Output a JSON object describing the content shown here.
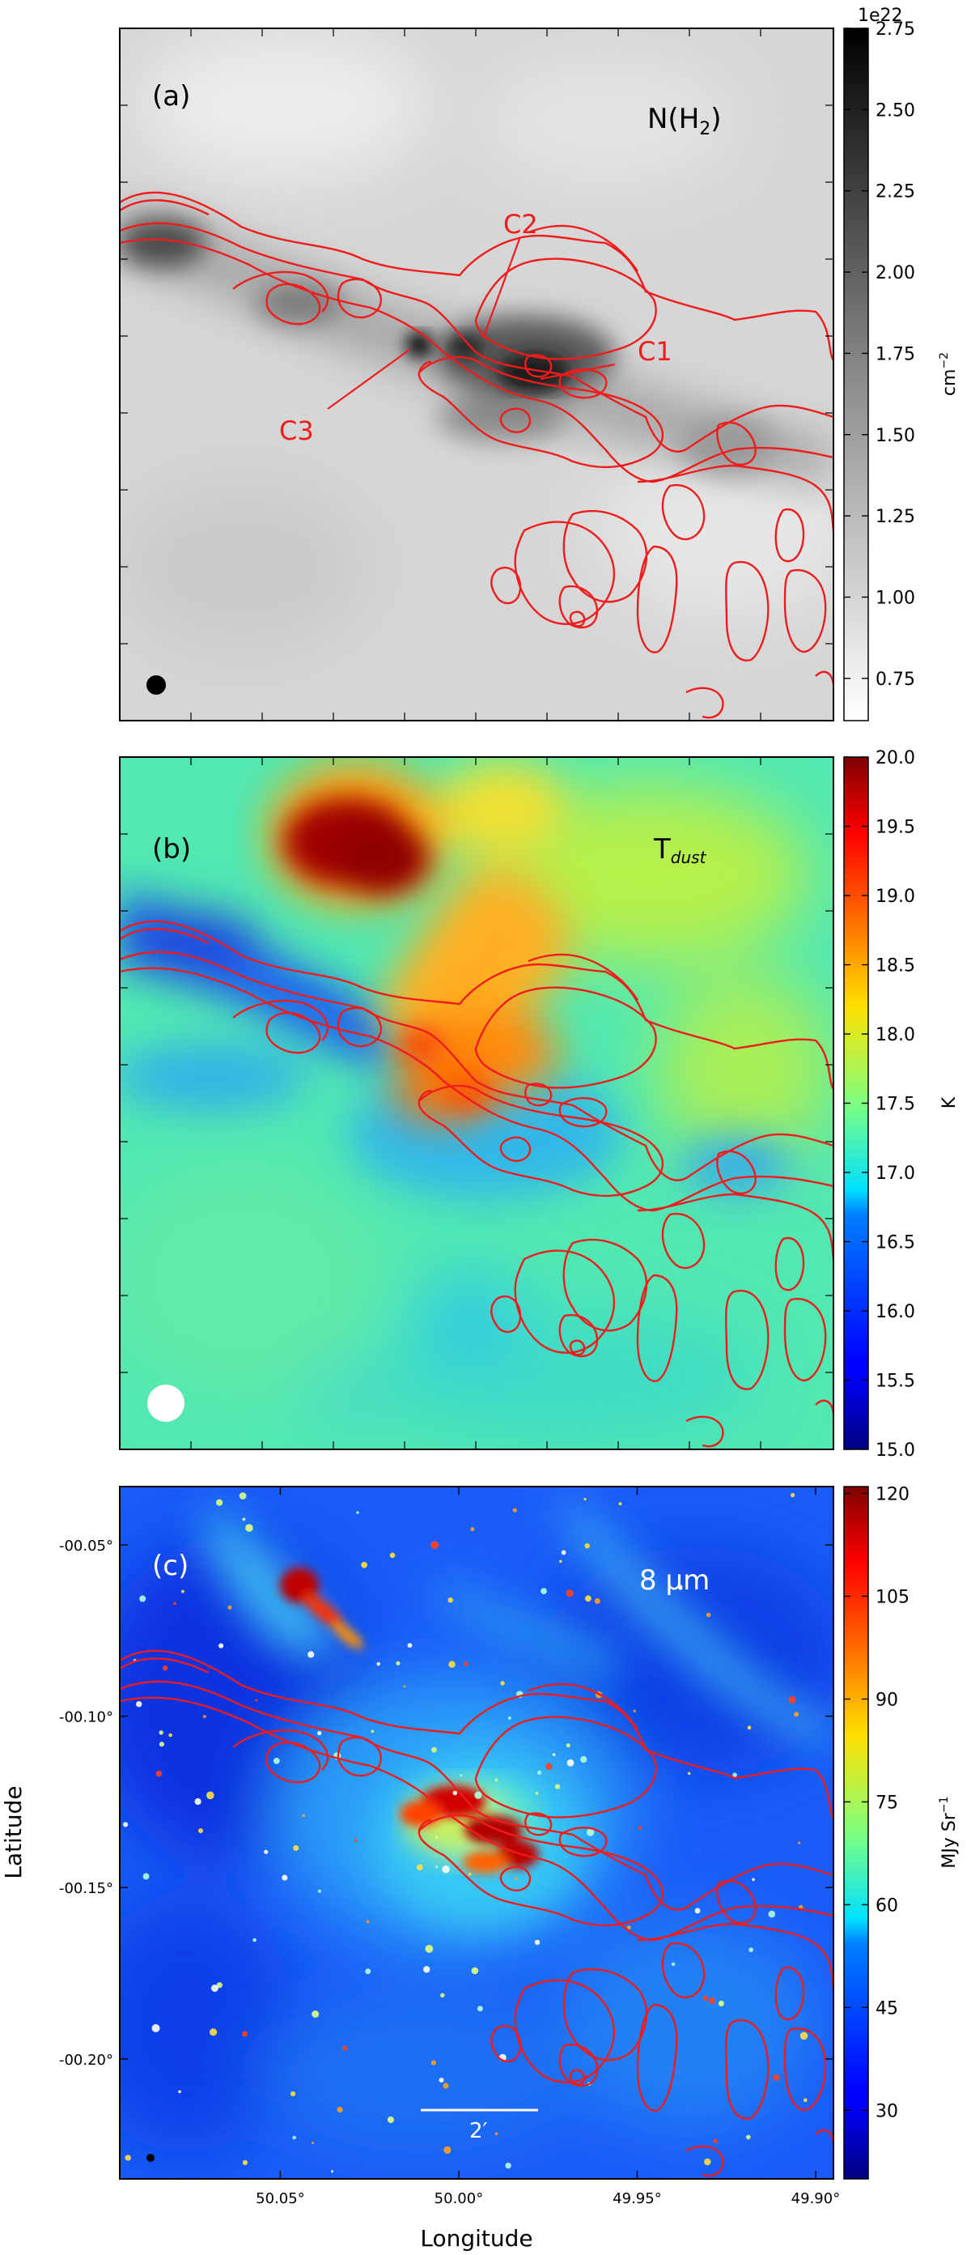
{
  "colors": {
    "contour": "#ee1c1c",
    "frame": "#000000",
    "text": "#000000",
    "inner_text_light": "#ffffff"
  },
  "chart_data": [
    {
      "type": "heatmap",
      "panel_label": "(a)",
      "quantity_label": "N(H",
      "quantity_subscript": "2",
      "quantity_close": ")",
      "colormap": "grayscale",
      "colorbar_exponent": "1e22",
      "colorbar_unit": "cm",
      "colorbar_unit_power": "−2",
      "colorbar_range": [
        0.62,
        2.75
      ],
      "colorbar_ticks": [
        "0.75",
        "1.00",
        "1.25",
        "1.50",
        "1.75",
        "2.00",
        "2.25",
        "2.50",
        "2.75"
      ],
      "colorbar_tick_values": [
        0.75,
        1.0,
        1.25,
        1.5,
        1.75,
        2.0,
        2.25,
        2.5,
        2.75
      ],
      "annotations": [
        {
          "label": "C1"
        },
        {
          "label": "C2"
        },
        {
          "label": "C3"
        }
      ],
      "beam": "filled-circle"
    },
    {
      "type": "heatmap",
      "panel_label": "(b)",
      "quantity_label": "T",
      "quantity_subscript": "dust",
      "colormap": "jet",
      "colorbar_unit": "K",
      "colorbar_range": [
        15.0,
        20.0
      ],
      "colorbar_ticks": [
        "15.0",
        "15.5",
        "16.0",
        "16.5",
        "17.0",
        "17.5",
        "18.0",
        "18.5",
        "19.0",
        "19.5",
        "20.0"
      ],
      "colorbar_tick_values": [
        15.0,
        15.5,
        16.0,
        16.5,
        17.0,
        17.5,
        18.0,
        18.5,
        19.0,
        19.5,
        20.0
      ],
      "beam": "white-circle"
    },
    {
      "type": "heatmap",
      "panel_label": "(c)",
      "quantity_label": "8 μm",
      "colormap": "jet",
      "colorbar_unit": "MJy Sr",
      "colorbar_unit_power": "−1",
      "colorbar_range": [
        20,
        121
      ],
      "colorbar_ticks": [
        "30",
        "45",
        "60",
        "75",
        "90",
        "105",
        "120"
      ],
      "colorbar_tick_values": [
        30,
        45,
        60,
        75,
        90,
        105,
        120
      ],
      "xlabel": "Longitude",
      "ylabel": "Latitude",
      "x_ticks": [
        "50.05°",
        "50.00°",
        "49.95°",
        "49.90°"
      ],
      "x_tick_values": [
        50.05,
        50.0,
        49.95,
        49.9
      ],
      "xlim": [
        50.095,
        49.895
      ],
      "y_ticks": [
        "-00.05°",
        "-00.10°",
        "-00.15°",
        "-00.20°"
      ],
      "y_tick_values": [
        -0.05,
        -0.1,
        -0.15,
        -0.2
      ],
      "ylim": [
        -0.235,
        -0.033
      ],
      "scalebar_label": "2′"
    }
  ]
}
